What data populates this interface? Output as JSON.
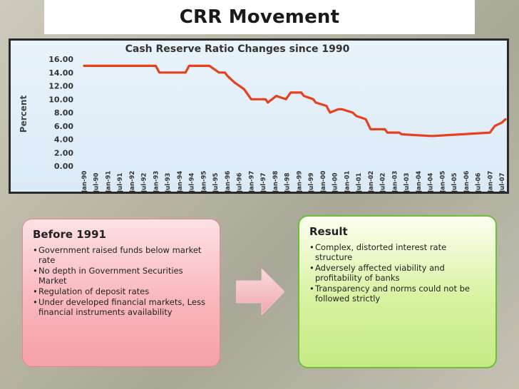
{
  "slide": {
    "title": "CRR Movement"
  },
  "chart_data": {
    "type": "line",
    "title": "Cash Reserve Ratio Changes since 1990",
    "ylabel": "Percent",
    "xlabel": "",
    "ylim": [
      0,
      16
    ],
    "yticks": [
      "16.00",
      "14.00",
      "12.00",
      "10.00",
      "8.00",
      "6.00",
      "4.00",
      "2.00",
      "0.00"
    ],
    "categories": [
      "Jan-90",
      "Jul-90",
      "Jan-91",
      "Jul-91",
      "Jan-92",
      "Jul-92",
      "Jan-93",
      "Jul-93",
      "Jan-94",
      "Jul-94",
      "Jan-95",
      "Jul-95",
      "Jan-96",
      "Jul-96",
      "Jan-97",
      "Jul-97",
      "Jan-98",
      "Jul-98",
      "Jan-99",
      "Jul-99",
      "Jan-00",
      "Jul-00",
      "Jan-01",
      "Jul-01",
      "Jan-02",
      "Jul-02",
      "Jan-03",
      "Jul-03",
      "Jan-04",
      "Jul-04",
      "Jan-05",
      "Jul-05",
      "Jan-06",
      "Jul-06",
      "Jan-07",
      "Jul-07"
    ],
    "series": [
      {
        "name": "CRR",
        "color": "#e8401c",
        "x": [
          0,
          2.5,
          3.3,
          6.0,
          6.3,
          8.5,
          8.8,
          10.5,
          11.3,
          11.8,
          12.0,
          12.6,
          13.4,
          14.0,
          15.2,
          15.4,
          16.1,
          16.9,
          17.3,
          18.2,
          18.4,
          19.2,
          19.4,
          20.3,
          20.6,
          21.3,
          21.6,
          22.5,
          22.8,
          23.6,
          24.0,
          25.2,
          25.4,
          26.4,
          26.6,
          29.0,
          29.3,
          34.0,
          34.4,
          35.0,
          35.3
        ],
        "values": [
          15,
          15,
          15,
          15,
          14,
          14,
          15,
          15,
          14,
          14,
          13.5,
          12.5,
          11.5,
          10,
          10,
          9.5,
          10.5,
          10,
          11,
          11,
          10.5,
          10,
          9.5,
          9,
          8,
          8.5,
          8.5,
          8,
          7.5,
          7,
          5.5,
          5.5,
          5,
          5,
          4.75,
          4.5,
          4.5,
          5,
          6,
          6.5,
          7
        ]
      }
    ],
    "grid": false,
    "background": "#e4eff9"
  },
  "panels": {
    "before": {
      "heading": "Before 1991",
      "items": [
        "Government raised funds below market rate",
        "No depth in Government Securities Market",
        "Regulation of deposit rates",
        "Under developed financial markets, Less financial instruments availability"
      ]
    },
    "result": {
      "heading": "Result",
      "items": [
        "Complex, distorted interest rate structure",
        "Adversely affected viability and profitability of banks",
        "Transparency and norms could not be followed strictly"
      ]
    }
  },
  "colors": {
    "line": "#e8401c",
    "panel_left": "#f9b7bd",
    "panel_right": "#d7f2a0",
    "arrow": "#f4b4b9"
  },
  "icons": {
    "arrow": "right-arrow-icon",
    "bullet": "•"
  }
}
